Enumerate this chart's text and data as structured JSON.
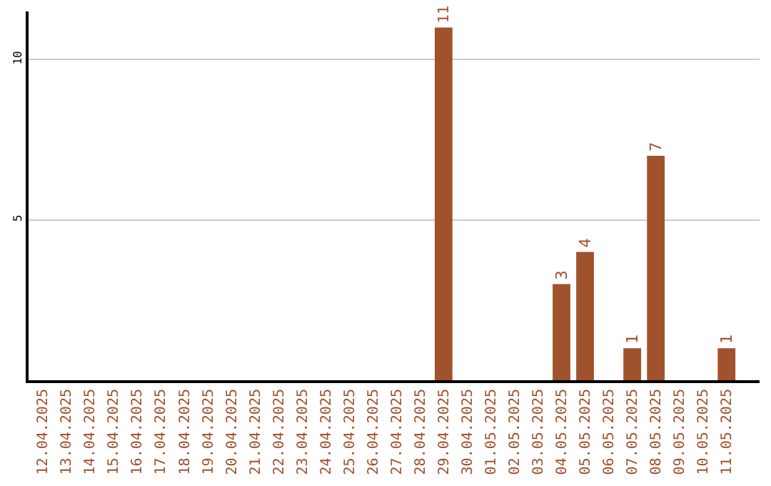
{
  "chart_data": {
    "type": "bar",
    "categories": [
      "12.04.2025",
      "13.04.2025",
      "14.04.2025",
      "15.04.2025",
      "16.04.2025",
      "17.04.2025",
      "18.04.2025",
      "19.04.2025",
      "20.04.2025",
      "21.04.2025",
      "22.04.2025",
      "23.04.2025",
      "24.04.2025",
      "25.04.2025",
      "26.04.2025",
      "27.04.2025",
      "28.04.2025",
      "29.04.2025",
      "30.04.2025",
      "01.05.2025",
      "02.05.2025",
      "03.05.2025",
      "04.05.2025",
      "05.05.2025",
      "06.05.2025",
      "07.05.2025",
      "08.05.2025",
      "09.05.2025",
      "10.05.2025",
      "11.05.2025"
    ],
    "values": [
      0,
      0,
      0,
      0,
      0,
      0,
      0,
      0,
      0,
      0,
      0,
      0,
      0,
      0,
      0,
      0,
      0,
      11,
      0,
      0,
      0,
      0,
      3,
      4,
      0,
      1,
      7,
      0,
      0,
      1
    ],
    "value_labels": [
      null,
      null,
      null,
      null,
      null,
      null,
      null,
      null,
      null,
      null,
      null,
      null,
      null,
      null,
      null,
      null,
      null,
      "11",
      null,
      null,
      null,
      null,
      "3",
      "4",
      null,
      "1",
      "7",
      null,
      null,
      "1"
    ],
    "color": "#a0522d",
    "ylim": [
      0,
      11.5
    ],
    "yticks": [
      5,
      10
    ],
    "grid": "y"
  }
}
